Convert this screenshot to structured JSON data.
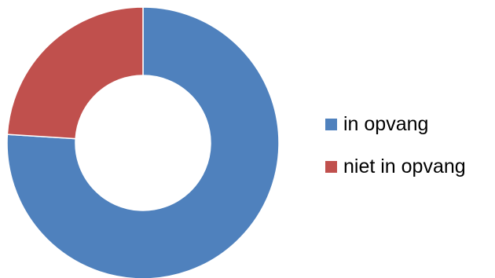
{
  "chart_data": {
    "type": "pie",
    "subtype": "doughnut",
    "title": "",
    "legend_position": "right",
    "slices": [
      {
        "label": "in opvang",
        "value": 76,
        "color": "#4F81BD"
      },
      {
        "label": "niet in opvang",
        "value": 24,
        "color": "#C0504D"
      }
    ]
  }
}
